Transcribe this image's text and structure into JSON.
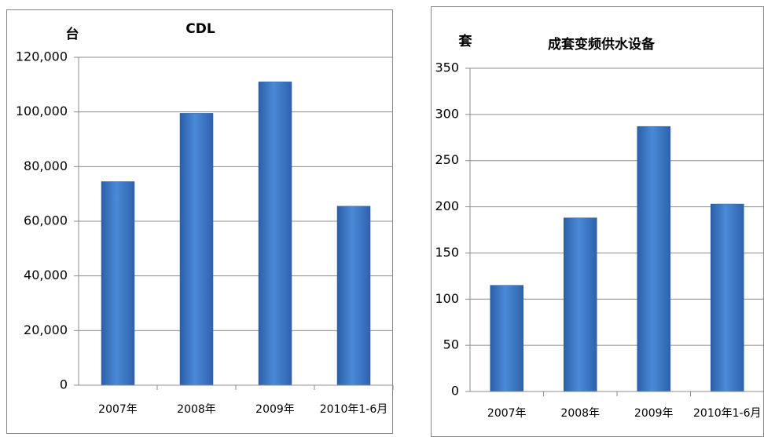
{
  "chart_data": [
    {
      "type": "bar",
      "title": "CDL",
      "y_unit": "台",
      "categories": [
        "2007年",
        "2008年",
        "2009年",
        "2010年1-6月"
      ],
      "values": [
        74500,
        99500,
        111000,
        65500
      ],
      "color": "#3f7fd0",
      "ylim": [
        0,
        120000
      ],
      "yticks": [
        0,
        {
          "value": 20000,
          "label": "20,000"
        },
        {
          "value": 40000,
          "label": "40,000"
        },
        {
          "value": 60000,
          "label": "60,000"
        },
        {
          "value": 80000,
          "label": "80,000"
        },
        {
          "value": 100000,
          "label": "100,000"
        },
        {
          "value": 120000,
          "label": "120,000"
        }
      ],
      "grid": true
    },
    {
      "type": "bar",
      "title": "成套变频供水设备",
      "y_unit": "套",
      "categories": [
        "2007年",
        "2008年",
        "2009年",
        "2010年1-6月"
      ],
      "values": [
        115,
        188,
        287,
        203
      ],
      "color": "#3f7fd0",
      "ylim": [
        0,
        350
      ],
      "yticks": [
        0,
        50,
        100,
        150,
        200,
        250,
        300,
        350
      ],
      "grid": true
    }
  ]
}
